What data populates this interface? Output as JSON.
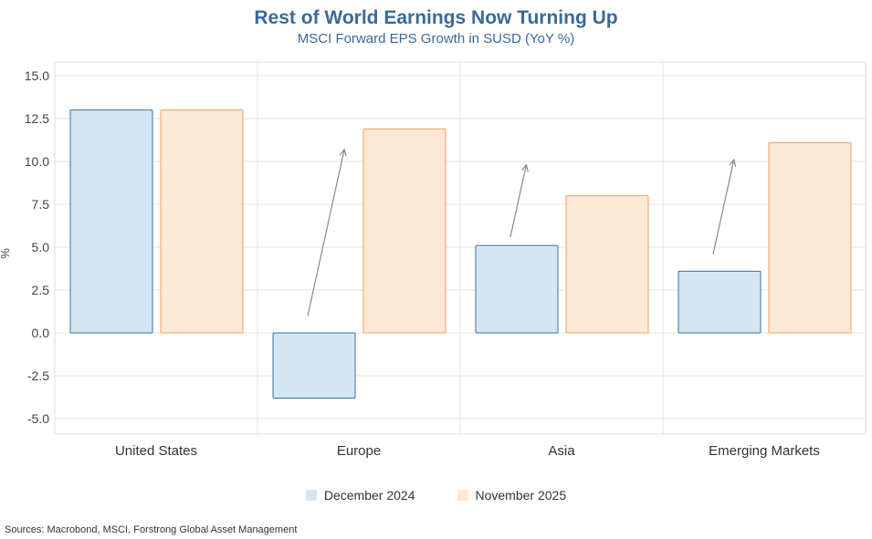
{
  "chart_data": {
    "type": "bar",
    "title": "Rest of World Earnings Now Turning Up",
    "subtitle": "MSCI Forward EPS Growth in SUSD (YoY %)",
    "xlabel": "",
    "ylabel": "%",
    "ylim": [
      -6,
      16
    ],
    "yticks": [
      -5.0,
      -2.5,
      0.0,
      2.5,
      5.0,
      7.5,
      10.0,
      12.5,
      15.0
    ],
    "grid": true,
    "legend_position": "bottom",
    "categories": [
      "United States",
      "Europe",
      "Asia",
      "Emerging Markets"
    ],
    "series": [
      {
        "name": "December 2024",
        "values": [
          13.0,
          -3.8,
          5.1,
          3.6
        ],
        "fill": "#d4e6f3",
        "stroke": "#3d6e9e"
      },
      {
        "name": "November 2025",
        "values": [
          13.0,
          11.9,
          8.0,
          11.1
        ],
        "fill": "#fde8d6",
        "stroke": "#eea35c"
      }
    ],
    "annotations": [
      {
        "type": "arrow",
        "category": "Europe",
        "from": 1.0,
        "to": 10.7
      },
      {
        "type": "arrow",
        "category": "Asia",
        "from": 5.6,
        "to": 9.8
      },
      {
        "type": "arrow",
        "category": "Emerging Markets",
        "from": 4.6,
        "to": 10.1
      }
    ]
  },
  "source": "Sources: Macrobond, MSCI, Forstrong Global Asset Management"
}
